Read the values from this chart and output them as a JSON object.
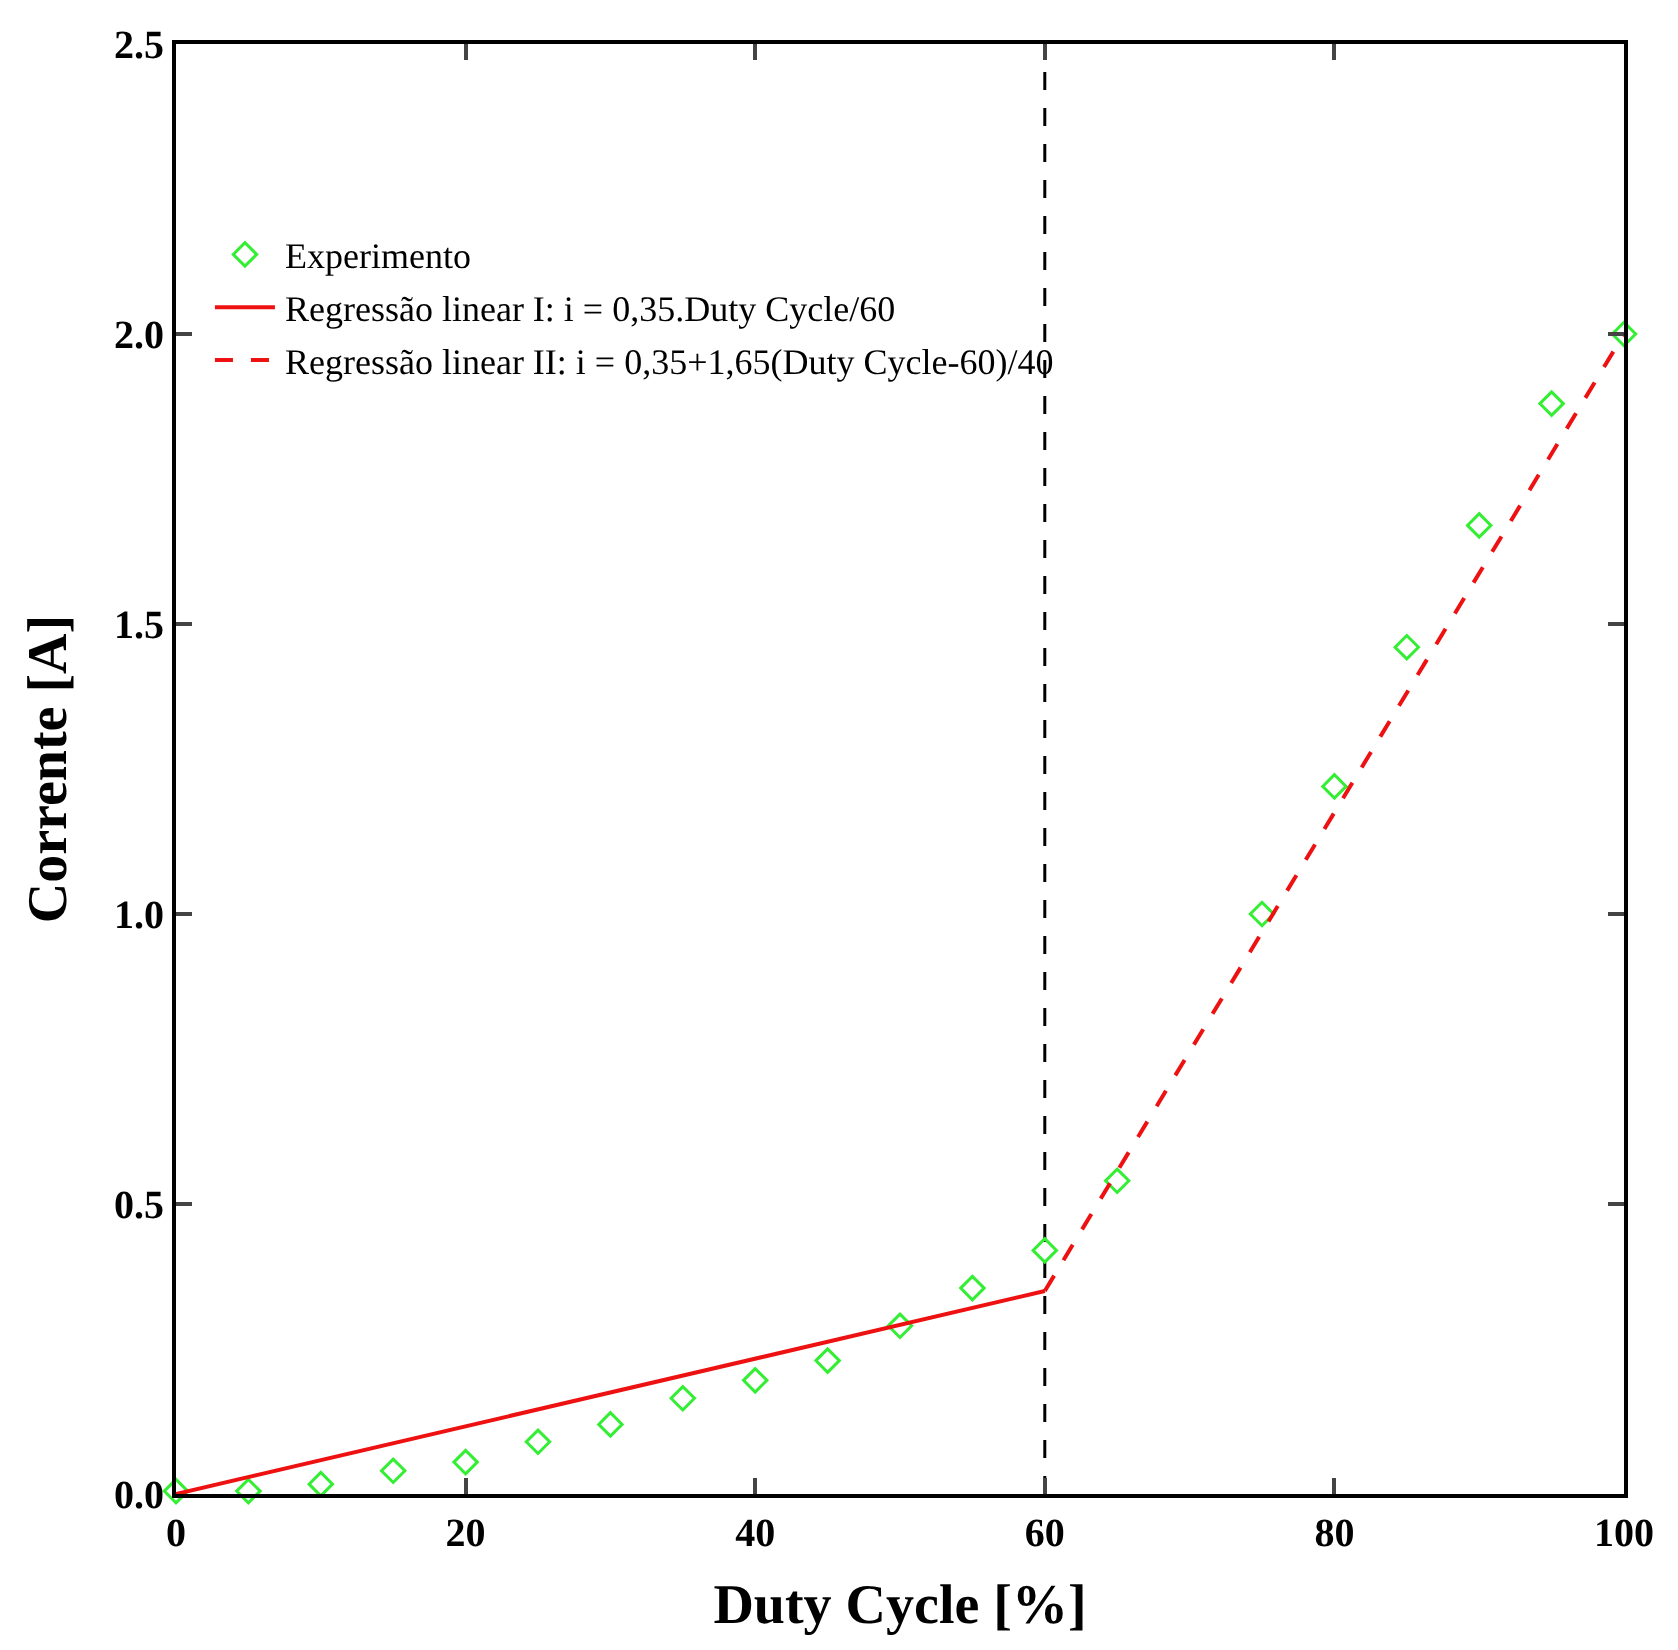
{
  "chart_data": {
    "type": "scatter",
    "xlabel": "Duty Cycle [%]",
    "ylabel": "Corrente [A]",
    "xlim": [
      0,
      100
    ],
    "xticks": [
      0,
      20,
      40,
      60,
      80,
      100
    ],
    "ylim": [
      0,
      2.5
    ],
    "yticks": [
      {
        "value": 0,
        "label": "0.0"
      },
      {
        "value": 0.5,
        "label": "0.5"
      },
      {
        "value": 1,
        "label": "1.0"
      },
      {
        "value": 1.5,
        "label": "1.5"
      },
      {
        "value": 2,
        "label": "2.0"
      },
      {
        "value": 2.5,
        "label": "2.5"
      }
    ],
    "grid": false,
    "legend": "top left",
    "series": [
      {
        "name": "Experimento",
        "marker": "diamond",
        "color": "#33ee33",
        "x": [
          0,
          5,
          10,
          15,
          20,
          25,
          30,
          35,
          40,
          45,
          50,
          55,
          60,
          65,
          75,
          80,
          85,
          90,
          95,
          100
        ],
        "values": [
          0.005,
          0.005,
          0.017,
          0.04,
          0.055,
          0.09,
          0.12,
          0.165,
          0.196,
          0.23,
          0.29,
          0.355,
          0.42,
          0.54,
          1.0,
          1.22,
          1.46,
          1.67,
          1.88,
          2.0
        ]
      },
      {
        "name": "Regressão linear I: i = 0,35.Duty Cycle/60",
        "type": "line",
        "line_style": "solid",
        "color": "#ee1111",
        "x": [
          0,
          60
        ],
        "values": [
          0,
          0.35
        ]
      },
      {
        "name": "Regressão linear II: i = 0,35+1,65(Duty Cycle-60)/40",
        "type": "line",
        "line_style": "dashed",
        "color": "#ee1111",
        "x": [
          60,
          100
        ],
        "values": [
          0.35,
          2.0
        ]
      }
    ],
    "ref_lines": [
      {
        "axis": "x",
        "value": 60,
        "color": "#000000",
        "line_style": "dashed"
      }
    ]
  }
}
